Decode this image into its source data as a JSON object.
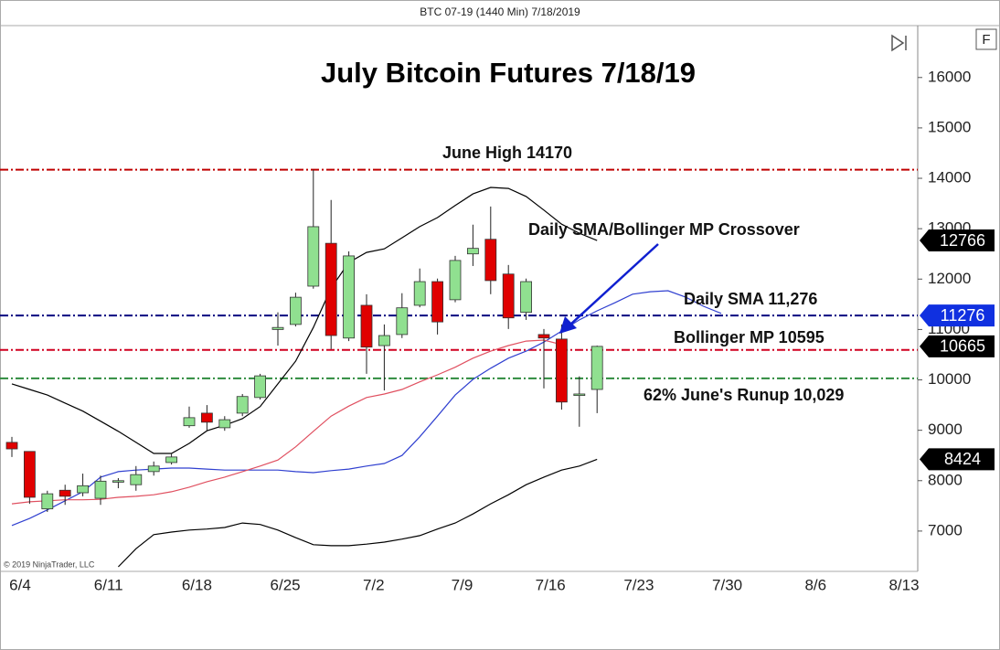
{
  "header": "BTC 07-19 (1440 Min)  7/18/2019",
  "button": "F",
  "copyright": "© 2019 NinjaTrader, LLC",
  "chart_data": {
    "type": "candlestick",
    "title": "July Bitcoin Futures 7/18/19",
    "up_color": "#90e090",
    "down_color": "#e00000",
    "open": [
      8760,
      8580,
      7440,
      7810,
      7760,
      7650,
      7970,
      7920,
      8180,
      8360,
      9090,
      9340,
      9050,
      9340,
      9650,
      11000,
      11100,
      11860,
      12710,
      10830,
      11480,
      10680,
      10900,
      11480,
      11950,
      11590,
      12500,
      12790,
      12100,
      11340,
      10900,
      10810,
      9690,
      9810
    ],
    "high": [
      8870,
      8580,
      7800,
      7920,
      8140,
      8100,
      8050,
      8290,
      8380,
      8540,
      9470,
      9500,
      9280,
      9720,
      10120,
      11340,
      11730,
      14170,
      13570,
      12550,
      11700,
      11100,
      11720,
      12210,
      12010,
      12460,
      13080,
      13440,
      12280,
      12010,
      11010,
      11100,
      10070,
      10680
    ],
    "low": [
      8470,
      7540,
      7380,
      7520,
      7690,
      7520,
      7850,
      7800,
      8100,
      8320,
      9050,
      8980,
      8990,
      9280,
      9610,
      10680,
      11060,
      11810,
      10610,
      10770,
      10120,
      9790,
      10830,
      11440,
      10900,
      11540,
      12260,
      11700,
      11010,
      11190,
      9830,
      9410,
      9070,
      9340
    ],
    "close": [
      8630,
      7670,
      7740,
      7690,
      7900,
      7990,
      8000,
      8120,
      8290,
      8470,
      9250,
      9160,
      9210,
      9670,
      10080,
      11040,
      11640,
      13040,
      10880,
      12460,
      10650,
      10880,
      11430,
      11950,
      11150,
      12370,
      12610,
      11970,
      11230,
      11950,
      10830,
      9560,
      9720,
      10665
    ],
    "lines": [
      {
        "color": "#3040d0",
        "values": [
          7110,
          7250,
          7420,
          7600,
          7780,
          8070,
          8180,
          8210,
          8230,
          8250,
          8250,
          8230,
          8210,
          8210,
          8210,
          8210,
          8180,
          8160,
          8200,
          8230,
          8290,
          8340,
          8500,
          8870,
          9280,
          9700,
          10010,
          10230,
          10430,
          10570,
          10750,
          10970,
          11190,
          11370,
          11530,
          11700,
          11750,
          11770,
          11640,
          11460,
          11320
        ]
      },
      {
        "color": "#e05060",
        "values": [
          7540,
          7580,
          7600,
          7620,
          7620,
          7630,
          7670,
          7690,
          7720,
          7780,
          7870,
          7980,
          8070,
          8180,
          8290,
          8410,
          8670,
          8980,
          9280,
          9480,
          9650,
          9720,
          9810,
          9960,
          10100,
          10250,
          10430,
          10570,
          10680,
          10770,
          10790,
          10700,
          null,
          null,
          null,
          null,
          null,
          null,
          null,
          null,
          null
        ]
      },
      {
        "color": "#000000",
        "values": [
          9920,
          9810,
          9700,
          9540,
          9380,
          9180,
          8980,
          8760,
          8540,
          8540,
          8740,
          8990,
          9100,
          9230,
          9470,
          9920,
          10370,
          11040,
          11820,
          12330,
          12530,
          12600,
          12820,
          13040,
          13220,
          13460,
          13690,
          13820,
          13800,
          13640,
          13370,
          13090,
          12910,
          12766,
          null,
          null,
          null,
          null,
          null,
          null,
          null
        ]
      },
      {
        "color": "#000000",
        "values": [
          null,
          null,
          null,
          null,
          null,
          null,
          6290,
          6650,
          6930,
          6980,
          7020,
          7040,
          7070,
          7160,
          7130,
          7020,
          6870,
          6730,
          6710,
          6710,
          6740,
          6780,
          6840,
          6910,
          7040,
          7160,
          7340,
          7540,
          7720,
          7920,
          8070,
          8210,
          8290,
          8424,
          null,
          null,
          null,
          null,
          null,
          null,
          null
        ]
      }
    ],
    "levels": [
      {
        "value": 14170,
        "color": "#c00000",
        "label": "June High 14170"
      },
      {
        "value": 11276,
        "color": "#000080",
        "label": "Daily SMA 11,276"
      },
      {
        "value": 10595,
        "color": "#d00020",
        "label": "Bollinger MP 10595"
      },
      {
        "value": 10029,
        "color": "#2e8b3e",
        "label": "62% June's Runup 10,029"
      }
    ],
    "arrow_annotation": "Daily SMA/Bollinger MP Crossover",
    "price_tags": [
      {
        "value": 12766,
        "color": "#000000"
      },
      {
        "value": 11276,
        "color": "#1030e0"
      },
      {
        "value": 10665,
        "color": "#000000"
      },
      {
        "value": 8424,
        "color": "#000000"
      }
    ],
    "ylim": [
      6200,
      17030
    ],
    "yticks": [
      7000,
      8000,
      9000,
      10000,
      11000,
      12000,
      13000,
      14000,
      15000,
      16000
    ],
    "xticks": [
      "6/4",
      "6/11",
      "6/18",
      "6/25",
      "7/2",
      "7/9",
      "7/16",
      "7/23",
      "7/30",
      "8/6",
      "8/13"
    ]
  }
}
